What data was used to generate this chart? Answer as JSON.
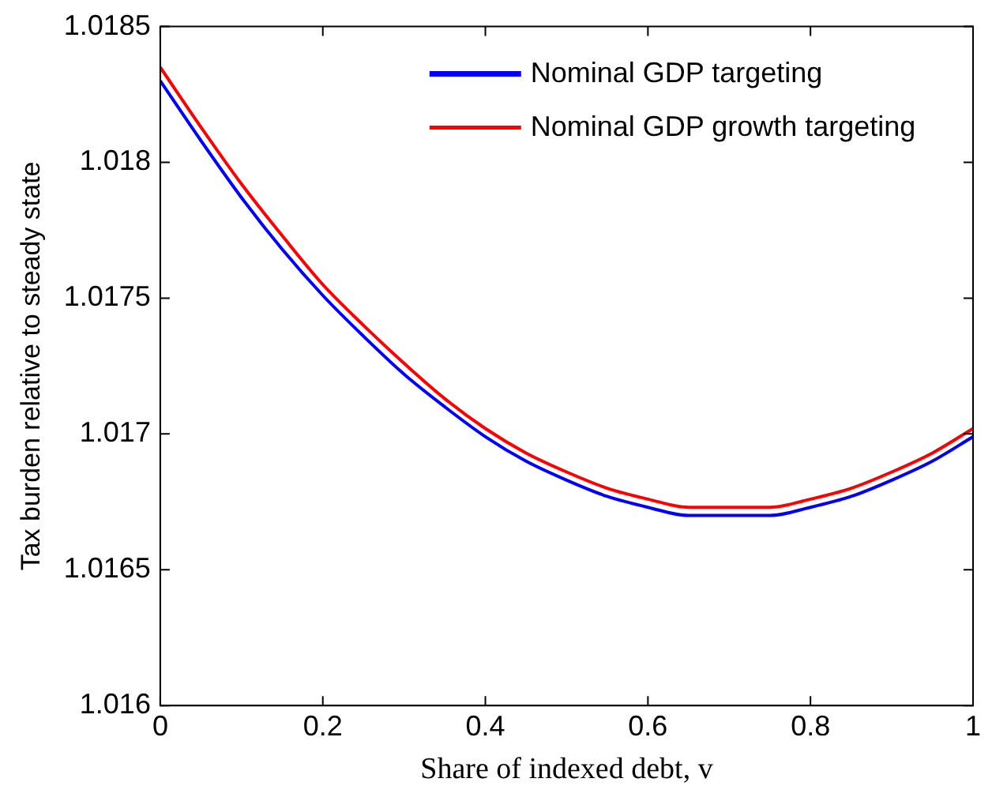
{
  "chart_data": {
    "type": "line",
    "xlabel": "Share of indexed debt, v",
    "ylabel": "Tax burden relative to steady state",
    "x": [
      0,
      0.05,
      0.1,
      0.15,
      0.2,
      0.25,
      0.3,
      0.35,
      0.4,
      0.45,
      0.5,
      0.55,
      0.6,
      0.65,
      0.7,
      0.75,
      0.8,
      0.85,
      0.9,
      0.95,
      1
    ],
    "series": [
      {
        "name": "Nominal GDP targeting",
        "color": "#0000ff",
        "values": [
          1.0183,
          1.01808,
          1.01787,
          1.01768,
          1.01751,
          1.01736,
          1.01722,
          1.0171,
          1.01699,
          1.0169,
          1.01683,
          1.01677,
          1.01673,
          1.0167,
          1.0167,
          1.0167,
          1.01673,
          1.01677,
          1.01683,
          1.0169,
          1.01699
        ]
      },
      {
        "name": "Nominal GDP growth targeting",
        "color": "#ff0000",
        "values": [
          1.01835,
          1.01813,
          1.01792,
          1.01773,
          1.01755,
          1.0174,
          1.01726,
          1.01713,
          1.01702,
          1.01693,
          1.01686,
          1.0168,
          1.01676,
          1.01673,
          1.01673,
          1.01673,
          1.01676,
          1.0168,
          1.01686,
          1.01693,
          1.01702
        ]
      }
    ],
    "xlim": [
      0,
      1
    ],
    "xticks": [
      0,
      0.2,
      0.4,
      0.6,
      0.8,
      1
    ],
    "ylim": [
      1.016,
      1.0185
    ],
    "yticks": [
      1.016,
      1.0165,
      1.017,
      1.0175,
      1.018,
      1.0185
    ],
    "grid": false,
    "legend": "top right",
    "marker": "none",
    "line_style": "solid"
  }
}
